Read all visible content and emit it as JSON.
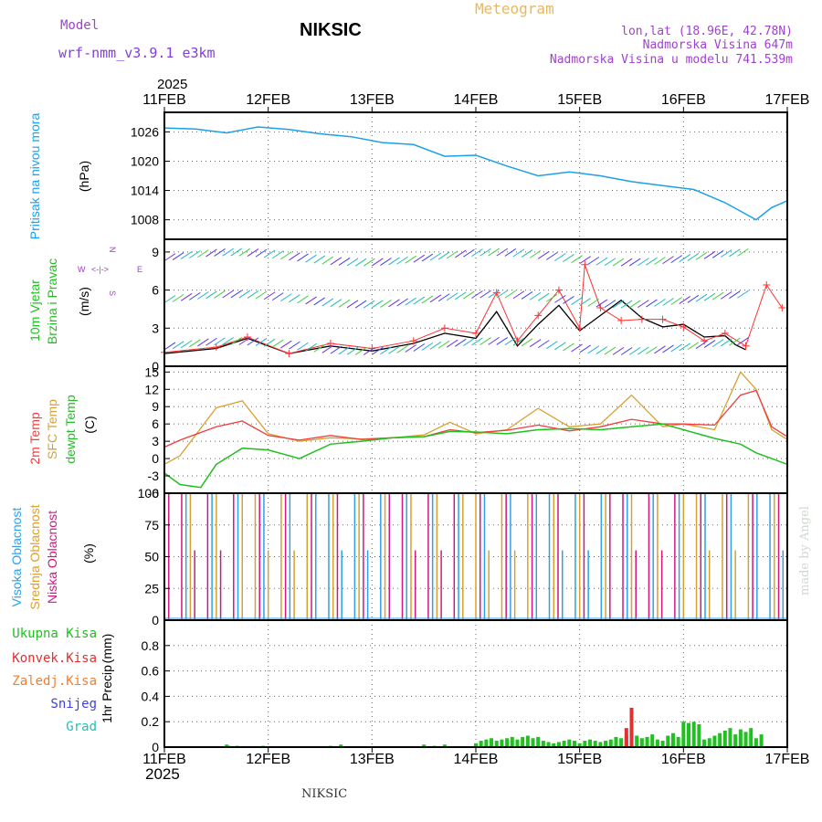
{
  "header": {
    "model_label": "Model",
    "model_name": "wrf-nmm_v3.9.1 e3km",
    "station": "NIKSIC",
    "meteogram": "Meteogram",
    "coords": "lon,lat (18.96E, 42.78N)",
    "elevation": "Nadmorska Visina 647m",
    "elevation_model": "Nadmorska Visina u modelu 741.539m",
    "year_top": "2025",
    "year_bottom": "2025",
    "footer_station": "NIKSIC",
    "credit": "made by Angel"
  },
  "colors": {
    "pressure": "#1ca0e8",
    "model": "#a040d0",
    "meteogram": "#e8b860",
    "wind_black": "#000000",
    "wind_red": "#ff3030",
    "temp2m": "#f03c3c",
    "sfc": "#d8a030",
    "dewpt": "#20c020",
    "high_cloud": "#30a0e8",
    "mid_cloud": "#d8a030",
    "low_cloud": "#d01880",
    "total_precip": "#20c020",
    "conv_precip": "#e03030",
    "snow": "#4040e0",
    "graupel": "#20c0c0",
    "freezing": "#f08030"
  },
  "chart_data": [
    {
      "type": "line",
      "title": "Pritisak na nivou mora",
      "ylabel": "(hPa)",
      "ylim": [
        1004,
        1030
      ],
      "yticks": [
        "1026",
        "1020",
        "1014",
        "1008"
      ],
      "yticks_values": [
        1026,
        1020,
        1014,
        1008
      ],
      "x_days": [
        "11FEB",
        "12FEB",
        "13FEB",
        "14FEB",
        "15FEB",
        "16FEB",
        "17FEB"
      ],
      "xlim_days": [
        0,
        6
      ],
      "series": [
        {
          "name": "pressure",
          "x": [
            0,
            0.3,
            0.6,
            0.9,
            1.2,
            1.5,
            1.8,
            2.1,
            2.4,
            2.7,
            3.0,
            3.3,
            3.6,
            3.9,
            4.2,
            4.5,
            4.8,
            5.1,
            5.4,
            5.7,
            5.85,
            6.0
          ],
          "values": [
            1026.8,
            1026.6,
            1025.8,
            1027.0,
            1026.5,
            1025.6,
            1025.0,
            1023.8,
            1023.4,
            1021.0,
            1021.2,
            1019.0,
            1017.0,
            1017.8,
            1017.0,
            1015.8,
            1015.0,
            1014.2,
            1011.5,
            1008.0,
            1010.5,
            1011.9
          ]
        }
      ]
    },
    {
      "type": "line",
      "title": "10m Vjetar Brzina i Pravac",
      "ylabel": "(m/s)",
      "ylim": [
        0,
        10
      ],
      "yticks": [
        "9",
        "6",
        "3",
        "0"
      ],
      "yticks_values": [
        9,
        6,
        3,
        0
      ],
      "direction_labels": [
        "N",
        "E",
        "S",
        "W",
        "<-",
        "->"
      ],
      "series": [
        {
          "name": "wind_speed",
          "x": [
            0,
            0.5,
            0.8,
            1.2,
            1.6,
            2.0,
            2.4,
            2.7,
            3.0,
            3.2,
            3.4,
            3.6,
            3.8,
            4.0,
            4.2,
            4.4,
            4.6,
            4.8,
            5.0,
            5.2,
            5.4,
            5.5,
            5.6
          ],
          "values": [
            1.0,
            1.4,
            2.2,
            1.0,
            1.6,
            1.2,
            1.8,
            2.6,
            2.2,
            4.3,
            1.6,
            3.3,
            4.8,
            2.8,
            4.0,
            5.2,
            3.8,
            3.1,
            3.3,
            2.3,
            2.4,
            1.7,
            1.3
          ]
        },
        {
          "name": "wind_gust",
          "x": [
            0,
            0.5,
            0.8,
            1.2,
            1.6,
            2.0,
            2.4,
            2.7,
            3.0,
            3.2,
            3.4,
            3.6,
            3.8,
            4.0,
            4.05,
            4.2,
            4.4,
            4.6,
            4.8,
            5.0,
            5.2,
            5.4,
            5.6,
            5.8,
            5.95
          ],
          "values": [
            1.1,
            1.5,
            2.3,
            1.0,
            1.8,
            1.4,
            2.0,
            3.0,
            2.6,
            5.8,
            2.0,
            4.0,
            6.0,
            3.0,
            8.0,
            4.6,
            3.6,
            3.7,
            3.7,
            3.1,
            2.0,
            2.6,
            1.6,
            6.4,
            4.6
          ]
        }
      ]
    },
    {
      "type": "line",
      "title": "2m Temp / SFC Temp / dewpt Temp",
      "ylabel": "(C)",
      "ylim": [
        -6,
        16
      ],
      "yticks": [
        "15",
        "12",
        "9",
        "6",
        "3",
        "0",
        "-3",
        "-6"
      ],
      "yticks_values": [
        15,
        12,
        9,
        6,
        3,
        0,
        -3,
        -6
      ],
      "series": [
        {
          "name": "2m Temp",
          "x": [
            0,
            0.15,
            0.5,
            0.75,
            1.0,
            1.3,
            1.6,
            1.9,
            2.2,
            2.5,
            2.75,
            3.0,
            3.3,
            3.6,
            3.9,
            4.2,
            4.5,
            4.8,
            5.0,
            5.3,
            5.55,
            5.7,
            5.85,
            6.0
          ],
          "values": [
            2.0,
            3.2,
            5.5,
            6.5,
            4.0,
            3.2,
            4.0,
            3.3,
            3.6,
            3.8,
            5.0,
            4.5,
            4.9,
            5.8,
            4.8,
            5.5,
            6.8,
            6.0,
            6.0,
            5.8,
            11.0,
            11.8,
            5.5,
            3.8
          ]
        },
        {
          "name": "SFC Temp",
          "x": [
            0,
            0.15,
            0.5,
            0.75,
            1.0,
            1.3,
            1.6,
            1.9,
            2.2,
            2.5,
            2.75,
            3.0,
            3.3,
            3.6,
            3.9,
            4.2,
            4.5,
            4.8,
            5.0,
            5.3,
            5.55,
            5.7,
            5.85,
            6.0
          ],
          "values": [
            -1.0,
            0.5,
            8.8,
            10.0,
            4.3,
            3.0,
            3.6,
            3.4,
            3.6,
            4.1,
            6.3,
            4.3,
            5.0,
            8.7,
            5.5,
            6.0,
            11.0,
            5.5,
            6.0,
            5.0,
            15.0,
            12.0,
            5.0,
            3.3
          ]
        },
        {
          "name": "dewpt Temp",
          "x": [
            0,
            0.15,
            0.35,
            0.5,
            0.75,
            1.0,
            1.3,
            1.6,
            1.9,
            2.2,
            2.5,
            2.75,
            3.0,
            3.3,
            3.6,
            3.9,
            4.2,
            4.5,
            4.8,
            5.0,
            5.3,
            5.55,
            5.7,
            5.85,
            6.0
          ],
          "values": [
            -2.5,
            -4.5,
            -5.0,
            -1.0,
            1.8,
            1.5,
            0.0,
            2.5,
            3.0,
            3.6,
            3.8,
            4.7,
            4.6,
            4.3,
            5.0,
            5.2,
            5.0,
            5.5,
            6.0,
            5.0,
            3.5,
            2.5,
            1.0,
            0.0,
            -1.0
          ]
        }
      ]
    },
    {
      "type": "bar",
      "title": "Visoka Oblacnost / Srednja Oblacnost / Niska Oblacnost",
      "ylabel": "(%)",
      "ylim": [
        0,
        100
      ],
      "yticks": [
        "100",
        "75",
        "50",
        "25",
        "0"
      ],
      "yticks_values": [
        100,
        75,
        50,
        25,
        0
      ],
      "note": "hourly cloud cover bars (mostly 0 or 100%)"
    },
    {
      "type": "bar",
      "title": "1hr Precip",
      "ylabel": "(mm)",
      "ylim": [
        0,
        1.0
      ],
      "yticks": [
        "0.8",
        "0.6",
        "0.4",
        "0.2",
        "0"
      ],
      "yticks_values": [
        0.8,
        0.6,
        0.4,
        0.2,
        0
      ],
      "series": [
        {
          "name": "Ukupna Kisa",
          "x": [
            0.6,
            0.62,
            0.7,
            0.95,
            1.6,
            1.7,
            2.5,
            2.6,
            2.7,
            3.0,
            3.05,
            3.1,
            3.15,
            3.2,
            3.25,
            3.3,
            3.35,
            3.4,
            3.45,
            3.5,
            3.55,
            3.6,
            3.65,
            3.7,
            3.75,
            3.8,
            3.85,
            3.9,
            3.95,
            4.0,
            4.05,
            4.1,
            4.15,
            4.2,
            4.25,
            4.3,
            4.35,
            4.4,
            4.45,
            4.5,
            4.55,
            4.6,
            4.65,
            4.7,
            4.75,
            4.8,
            4.85,
            4.9,
            4.95,
            5.0,
            5.05,
            5.1,
            5.15,
            5.2,
            5.25,
            5.3,
            5.35,
            5.4,
            5.45,
            5.5,
            5.55,
            5.6,
            5.65,
            5.7,
            5.75
          ],
          "values": [
            0.02,
            0.01,
            0.01,
            0.01,
            0.01,
            0.02,
            0.02,
            0.01,
            0.02,
            0.03,
            0.05,
            0.06,
            0.07,
            0.05,
            0.06,
            0.07,
            0.08,
            0.06,
            0.08,
            0.09,
            0.07,
            0.08,
            0.05,
            0.04,
            0.03,
            0.04,
            0.05,
            0.06,
            0.05,
            0.03,
            0.05,
            0.06,
            0.05,
            0.04,
            0.05,
            0.06,
            0.08,
            0.07,
            0.09,
            0.1,
            0.09,
            0.07,
            0.08,
            0.1,
            0.06,
            0.05,
            0.09,
            0.11,
            0.08,
            0.2,
            0.19,
            0.2,
            0.18,
            0.06,
            0.07,
            0.09,
            0.11,
            0.13,
            0.15,
            0.1,
            0.14,
            0.12,
            0.15,
            0.07,
            0.1
          ]
        },
        {
          "name": "Konvek.Kisa",
          "x": [
            4.45,
            4.5
          ],
          "values": [
            0.15,
            0.31
          ]
        },
        {
          "name": "Zaledj.Kisa",
          "x": [],
          "values": []
        },
        {
          "name": "Snijeg",
          "x": [],
          "values": []
        },
        {
          "name": "Grad",
          "x": [],
          "values": []
        }
      ],
      "legend": [
        "Ukupna Kisa",
        "Konvek.Kisa",
        "Zaledj.Kisa",
        "Snijeg",
        "Grad"
      ]
    }
  ],
  "axes_labels": {
    "pressure_title": "Pritisak na nivou mora",
    "pressure_unit": "(hPa)",
    "wind_title_1": "10m Vjetar",
    "wind_title_2": "Brzina i Pravac",
    "wind_unit": "(m/s)",
    "temp_2m": "2m Temp",
    "temp_sfc": "SFC Temp",
    "temp_dew": "dewpt Temp",
    "temp_unit": "(C)",
    "cloud_high": "Visoka Oblacnost",
    "cloud_mid": "Srednja Oblacnost",
    "cloud_low": "Niska Oblacnost",
    "cloud_unit": "(%)",
    "precip_title": "1hr Precip",
    "precip_unit": "(mm)",
    "compass": [
      "N",
      "E",
      "S",
      "W",
      "<-",
      "->"
    ]
  }
}
